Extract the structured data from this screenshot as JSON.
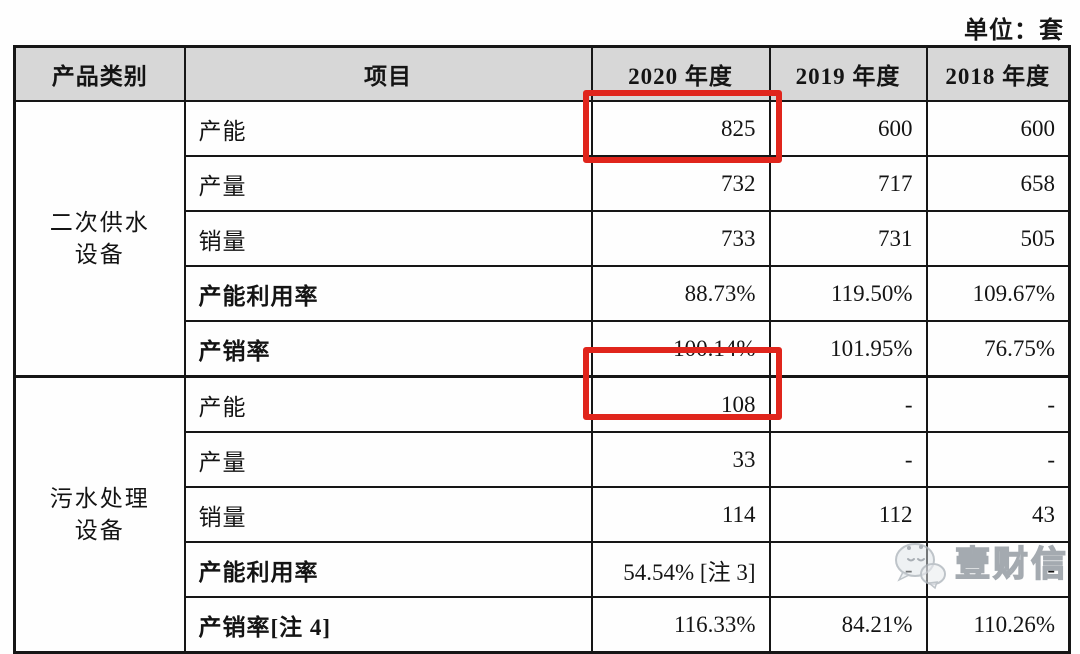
{
  "unit_label": "单位：套",
  "table": {
    "headers": [
      "产品类别",
      "项目",
      "2020 年度",
      "2019 年度",
      "2018 年度"
    ],
    "groups": [
      {
        "category": "二次供水设备",
        "rows": [
          {
            "item": "产能",
            "bold": false,
            "highlight_2020": true,
            "values": [
              "825",
              "600",
              "600"
            ]
          },
          {
            "item": "产量",
            "bold": false,
            "highlight_2020": false,
            "values": [
              "732",
              "717",
              "658"
            ]
          },
          {
            "item": "销量",
            "bold": false,
            "highlight_2020": false,
            "values": [
              "733",
              "731",
              "505"
            ]
          },
          {
            "item": "产能利用率",
            "bold": true,
            "highlight_2020": false,
            "values": [
              "88.73%",
              "119.50%",
              "109.67%"
            ]
          },
          {
            "item": "产销率",
            "bold": true,
            "highlight_2020": false,
            "values": [
              "100.14%",
              "101.95%",
              "76.75%"
            ]
          }
        ]
      },
      {
        "category": "污水处理设备",
        "rows": [
          {
            "item": "产能",
            "bold": false,
            "highlight_2020": true,
            "values": [
              "108",
              "-",
              "-"
            ]
          },
          {
            "item": "产量",
            "bold": false,
            "highlight_2020": false,
            "values": [
              "33",
              "-",
              "-"
            ]
          },
          {
            "item": "销量",
            "bold": false,
            "highlight_2020": false,
            "values": [
              "114",
              "112",
              "43"
            ]
          },
          {
            "item": "产能利用率",
            "bold": true,
            "highlight_2020": false,
            "values": [
              "54.54% [注 3]",
              "-",
              "-"
            ]
          },
          {
            "item": "产销率[注 4]",
            "bold": true,
            "highlight_2020": false,
            "values": [
              "116.33%",
              "84.21%",
              "110.26%"
            ]
          }
        ]
      }
    ]
  },
  "annotations": {
    "highlight_color": "#e0251c",
    "highlighted_cells": [
      "2020 产能 825",
      "2020 产能 108"
    ]
  },
  "watermark": {
    "text": "壹财信",
    "icon": "wechat-bubbles-icon"
  },
  "colors": {
    "header_bg": "#d7d7d7",
    "border": "#161616",
    "highlight_red": "#e0251c"
  }
}
